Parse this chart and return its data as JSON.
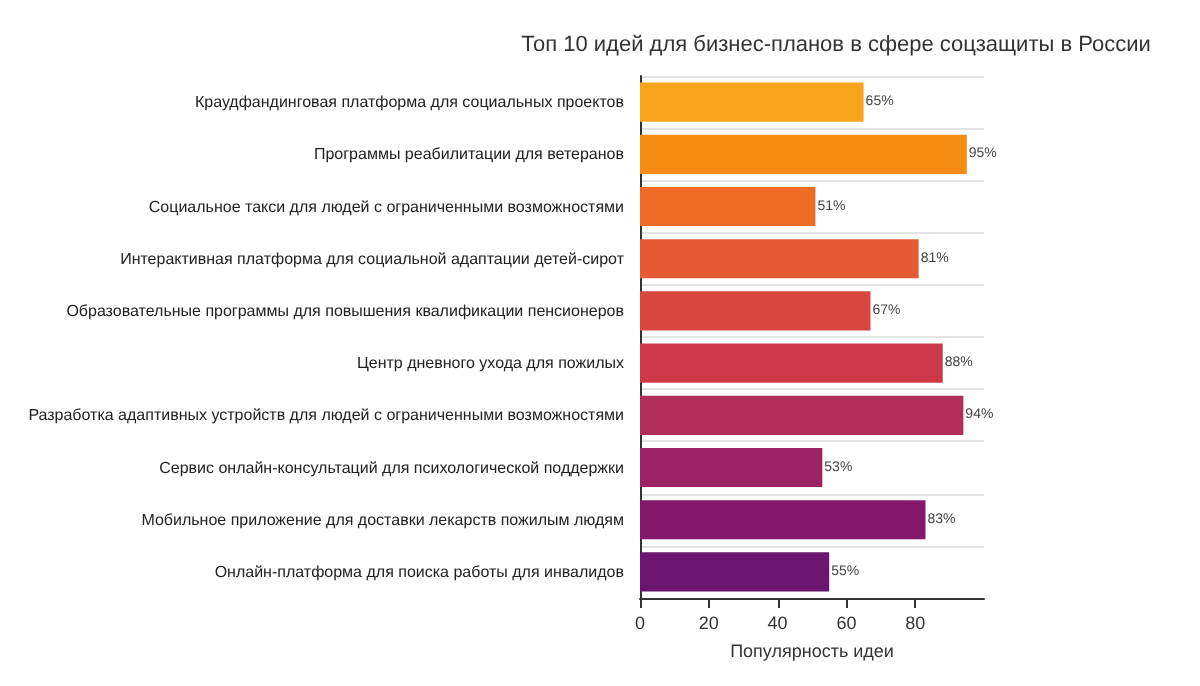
{
  "chart_data": {
    "type": "bar",
    "orientation": "horizontal",
    "title": "Топ 10 идей для бизнес-планов в сфере соцзащиты в России",
    "xlabel": "Популярность идеи",
    "categories": [
      "Краудфандинговая платформа для социальных проектов",
      "Программы реабилитации для ветеранов",
      "Социальное такси для людей с ограниченными возможностями",
      "Интерактивная платформа для социальной адаптации детей-сирот",
      "Образовательные программы для повышения квалификации пенсионеров",
      "Центр дневного ухода для пожилых",
      "Разработка адаптивных устройств для людей с ограниченными возможностями",
      "Сервис онлайн-консультаций для психологической поддержки",
      "Мобильное приложение для доставки лекарств пожилым людям",
      "Онлайн-платформа для поиска работы для инвалидов"
    ],
    "values": [
      65,
      95,
      51,
      81,
      67,
      88,
      94,
      53,
      83,
      55
    ],
    "value_labels": [
      "65%",
      "95%",
      "51%",
      "81%",
      "67%",
      "88%",
      "94%",
      "53%",
      "83%",
      "55%"
    ],
    "colors": [
      "#f8a51c",
      "#f78c12",
      "#ee6b25",
      "#e55a33",
      "#d9463e",
      "#cc3a4a",
      "#b22d5a",
      "#9c2364",
      "#84196b",
      "#6b1470"
    ],
    "xlim": [
      0,
      100
    ],
    "xticks": [
      0,
      20,
      40,
      60,
      80
    ],
    "grid": "y"
  }
}
